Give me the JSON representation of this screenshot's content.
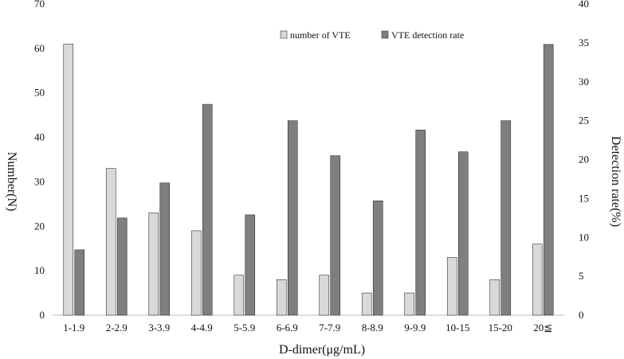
{
  "chart_data": {
    "type": "bar",
    "title": "",
    "xlabel": "D-dimer(μg/mL)",
    "ylabel": "Number(N)",
    "y2label": "Detection rate(%)",
    "categories": [
      "1-1.9",
      "2-2.9",
      "3-3.9",
      "4-4.9",
      "5-5.9",
      "6-6.9",
      "7-7.9",
      "8-8.9",
      "9-9.9",
      "10-15",
      "15-20",
      "20≦"
    ],
    "ylim": [
      0,
      70
    ],
    "yticks": [
      0,
      10,
      20,
      30,
      40,
      50,
      60,
      70
    ],
    "y2lim": [
      0,
      40
    ],
    "y2ticks": [
      0,
      5,
      10,
      15,
      20,
      25,
      30,
      35,
      40
    ],
    "legend_position": "top-right",
    "grid": false,
    "series": [
      {
        "name": "number of VTE",
        "axis": "left",
        "color": "#d9d9d9",
        "values": [
          61,
          33,
          23,
          19,
          9,
          8,
          9,
          5,
          5,
          13,
          8,
          16
        ]
      },
      {
        "name": "VTE detection rate",
        "axis": "right",
        "color": "#7f7f7f",
        "values": [
          8.4,
          12.5,
          17.0,
          27.1,
          12.9,
          25.0,
          20.5,
          14.7,
          23.8,
          21.0,
          25.0,
          34.8
        ]
      }
    ]
  }
}
